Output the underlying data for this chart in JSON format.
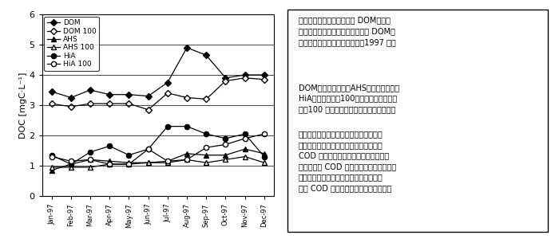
{
  "months": [
    "Jan-97",
    "Feb-97",
    "Mar-97",
    "Apr-97",
    "May-97",
    "Jun-97",
    "Jul-97",
    "Aug-97",
    "Sep-97",
    "Oct-97",
    "Nov-97",
    "Dec-97"
  ],
  "DOM": [
    3.45,
    3.25,
    3.5,
    3.35,
    3.35,
    3.3,
    3.75,
    4.9,
    4.65,
    3.9,
    4.0,
    4.0
  ],
  "DOM100": [
    3.05,
    2.95,
    3.05,
    3.05,
    3.05,
    2.85,
    3.4,
    3.25,
    3.2,
    3.8,
    3.9,
    3.85
  ],
  "AHS": [
    0.85,
    1.05,
    1.2,
    1.15,
    1.1,
    1.1,
    1.15,
    1.4,
    1.35,
    1.35,
    1.55,
    1.4
  ],
  "AHS100": [
    0.95,
    0.95,
    0.95,
    1.05,
    1.05,
    1.1,
    1.1,
    1.2,
    1.1,
    1.2,
    1.3,
    1.1
  ],
  "HiA": [
    1.35,
    1.05,
    1.45,
    1.65,
    1.35,
    1.55,
    2.3,
    2.3,
    2.05,
    1.9,
    2.05,
    1.3
  ],
  "HiA100": [
    1.3,
    1.15,
    1.2,
    1.05,
    1.05,
    1.55,
    1.15,
    1.2,
    1.6,
    1.7,
    1.9,
    2.05
  ],
  "ylabel": "DOC [mgC·L⁻¹]",
  "ylim": [
    0,
    6
  ],
  "yticks": [
    0,
    1,
    2,
    3,
    4,
    5,
    6
  ],
  "legend_labels": [
    "DOM",
    "DOM 100",
    "AHS",
    "AHS 100",
    "HiA",
    "HiA 100"
  ],
  "markers": [
    "D",
    "D",
    "^",
    "^",
    "o",
    "o"
  ],
  "fillstyles": [
    "full",
    "none",
    "full",
    "none",
    "full",
    "none"
  ],
  "figsize": [
    7.0,
    3.0
  ],
  "dpi": 100,
  "title_text": "図３　霧ヶ浦湖心における DOM，フミ\nン物質，親水性酸および難分解性 DOM，\nフミン物質，親水性酸の動態（1997 年）",
  "note1": "DOM：溶存有機物，AHS：フミン物質，\nHiA：親水性酸，100：難分解性分画を示\nす（100 日間生分解試験後のサンプル）。",
  "note2": "親水性酸は冬期で極めて難分解性。冬期\nに難分解性親水性酸が増大する。湖沼で\nCOD 濃度が漸増するのは，例年に比べ\nて，冬期に COD 濃度が上昇することに因\nる。この難分解性親水性酸の冬期での上\n昇と COD の漸増現象は整合している。"
}
